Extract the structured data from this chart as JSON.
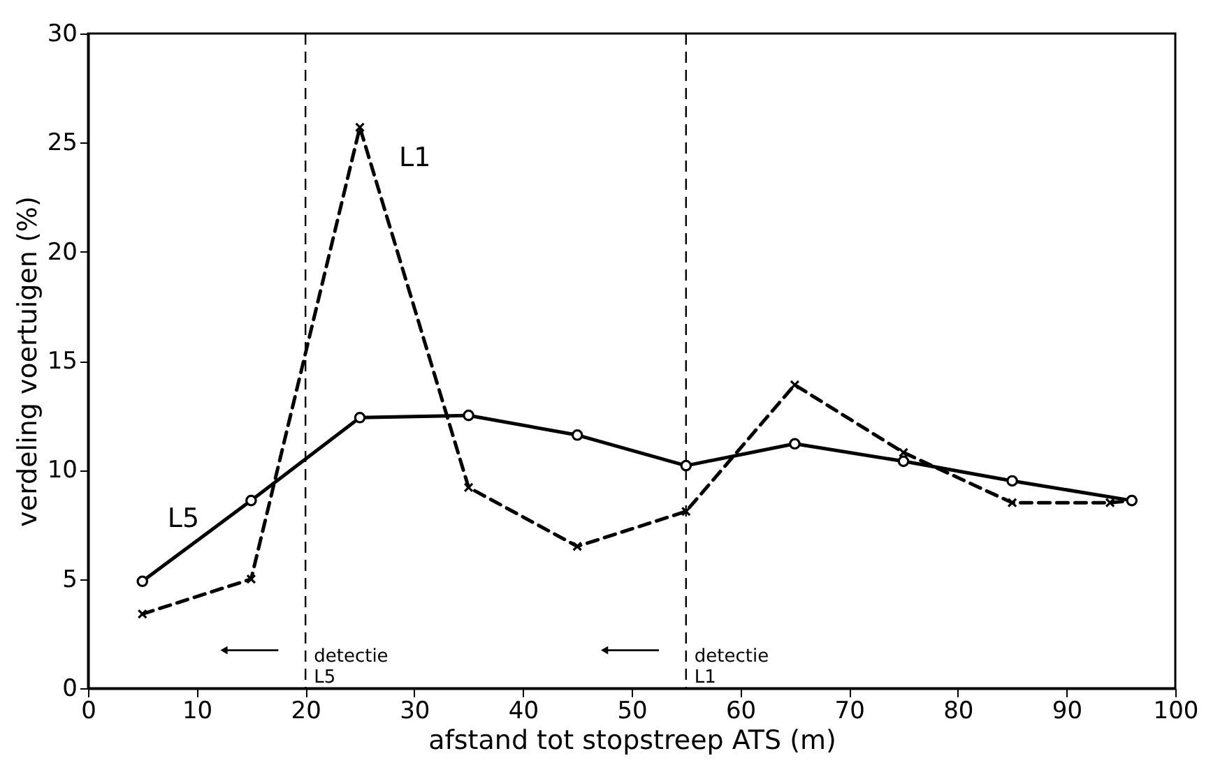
{
  "chart_data": {
    "type": "line",
    "xlabel": "afstand tot stopstreep ATS (m)",
    "ylabel": "verdeling voertuigen (%)",
    "xlim": [
      0,
      100
    ],
    "xticks": [
      0,
      10,
      20,
      30,
      40,
      50,
      60,
      70,
      80,
      90,
      100
    ],
    "ylim": [
      0,
      30
    ],
    "yticks": [
      0,
      5,
      10,
      15,
      20,
      25,
      30
    ],
    "series": [
      {
        "name": "L1",
        "color": "#000000",
        "marker": "cross",
        "line_style": "dashed",
        "x": [
          5,
          15,
          25,
          35,
          45,
          55,
          65,
          75,
          85,
          94,
          96
        ],
        "values": [
          3.4,
          5.0,
          25.7,
          9.2,
          6.5,
          8.1,
          13.9,
          10.8,
          8.5,
          8.5,
          8.6
        ]
      },
      {
        "name": "L5",
        "color": "#000000",
        "marker": "circle",
        "line_style": "solid",
        "x": [
          5,
          15,
          25,
          35,
          45,
          55,
          65,
          75,
          85,
          96
        ],
        "values": [
          4.9,
          8.6,
          12.4,
          12.5,
          11.6,
          10.2,
          11.2,
          10.4,
          9.5,
          8.6
        ]
      }
    ],
    "ref_lines": [
      {
        "axis": "x",
        "value": 20,
        "label": "detectie L5",
        "line_style": "dashed"
      },
      {
        "axis": "x",
        "value": 55,
        "label": "detectie L1",
        "line_style": "dashed"
      }
    ],
    "grid": false
  }
}
